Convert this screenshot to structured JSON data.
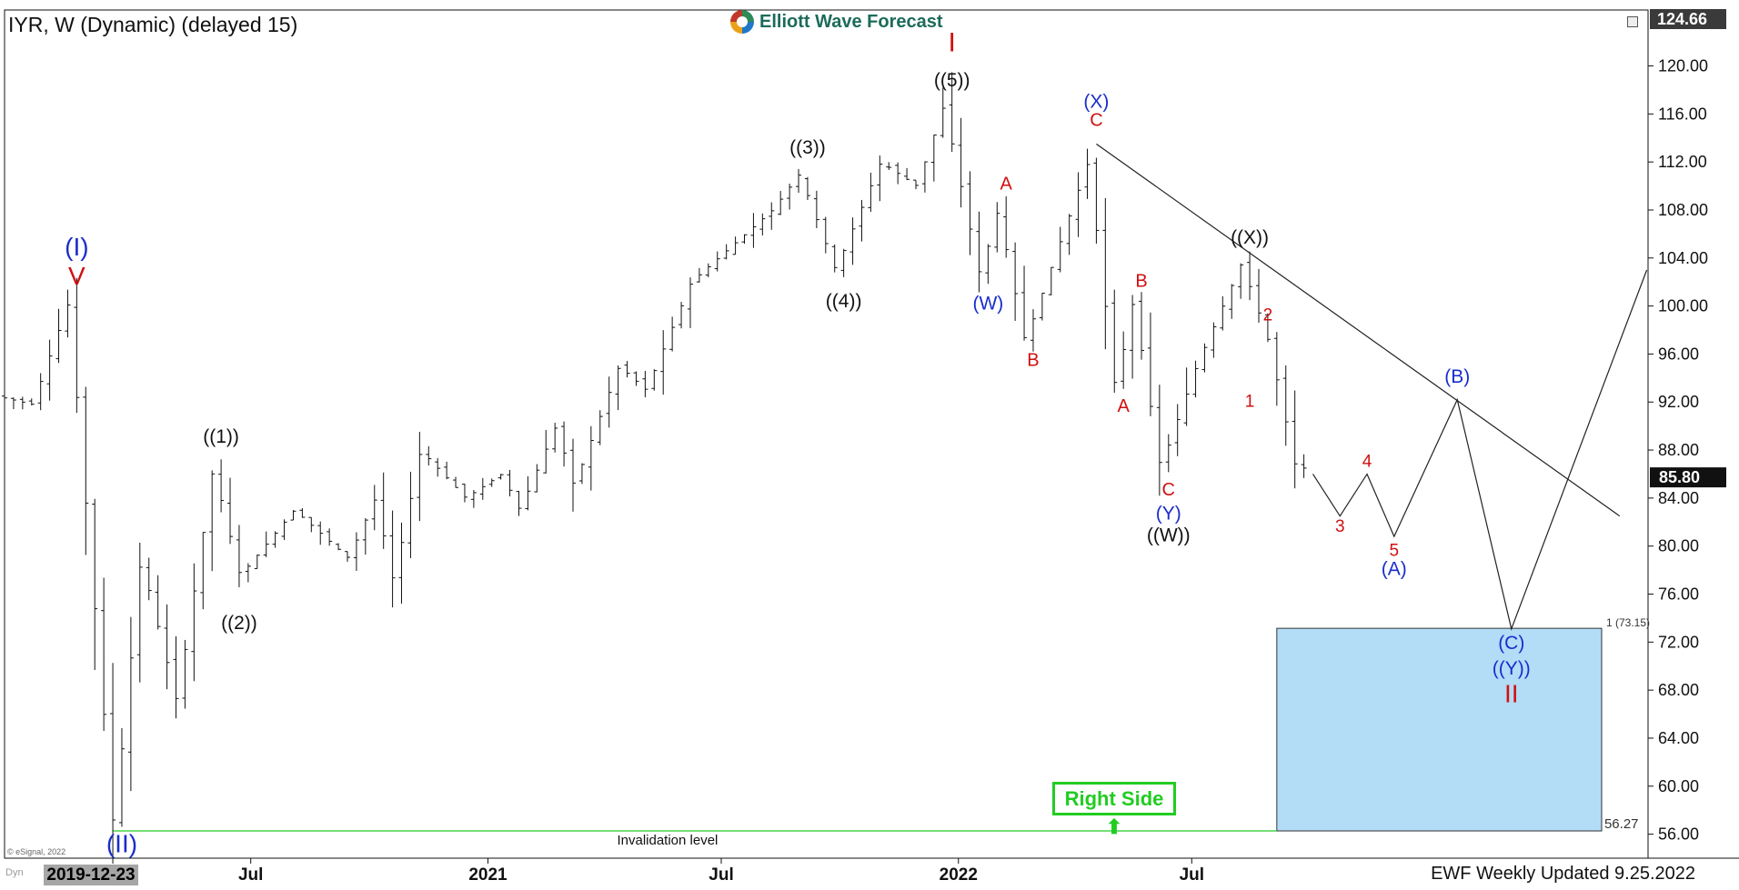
{
  "header": {
    "symbol_title": "IYR, W (Dynamic) (delayed 15)",
    "brand": "Elliott Wave Forecast"
  },
  "footer": {
    "updated": "EWF Weekly Updated 9.25.2022",
    "copyright": "© eSignal, 2022",
    "dyn": "Dyn",
    "start_date": "2019-12-23"
  },
  "badges": {
    "right_side": "Right Side ⬆"
  },
  "colors": {
    "target_box": "#b3dcf7",
    "invalidation_line": "#22cc22",
    "red_label": "#d01010",
    "blue_label": "#1a2dcc",
    "black_label": "#111111"
  },
  "chart_data": {
    "type": "ohlc",
    "yaxis": {
      "ticks": [
        56,
        60,
        64,
        68,
        72,
        76,
        80,
        84,
        88,
        92,
        96,
        100,
        104,
        108,
        112,
        116,
        120
      ],
      "tick_labels": [
        "56.00",
        "60.00",
        "64.00",
        "68.00",
        "72.00",
        "76.00",
        "80.00",
        "84.00",
        "88.00",
        "92.00",
        "96.00",
        "100.00",
        "104.00",
        "108.00",
        "112.00",
        "116.00",
        "120.00"
      ],
      "top_label": "124.66",
      "last_price_label": "85.80",
      "last_price": 85.8,
      "ylim": [
        54,
        124.66
      ]
    },
    "xaxis": {
      "labels": [
        {
          "text": "Jul",
          "date": "2020-07-01"
        },
        {
          "text": "2021",
          "date": "2021-01-01"
        },
        {
          "text": "Jul",
          "date": "2021-07-01"
        },
        {
          "text": "2022",
          "date": "2022-01-01"
        },
        {
          "text": "Jul",
          "date": "2022-07-01"
        }
      ],
      "xlim": [
        "2019-12-23",
        "2023-06-20"
      ]
    },
    "price_path": [
      [
        "2019-12-23",
        92.5
      ],
      [
        "2020-01-20",
        91.8
      ],
      [
        "2020-02-17",
        100.3
      ],
      [
        "2020-03-23",
        56.3
      ],
      [
        "2020-04-13",
        79
      ],
      [
        "2020-05-11",
        67
      ],
      [
        "2020-06-08",
        86.5
      ],
      [
        "2020-06-29",
        77.5
      ],
      [
        "2020-08-10",
        83
      ],
      [
        "2020-09-21",
        79
      ],
      [
        "2020-10-12",
        84
      ],
      [
        "2020-10-26",
        77
      ],
      [
        "2020-11-16",
        88
      ],
      [
        "2020-12-21",
        84
      ],
      [
        "2021-01-18",
        86
      ],
      [
        "2021-02-01",
        83
      ],
      [
        "2021-03-01",
        90
      ],
      [
        "2021-03-15",
        85
      ],
      [
        "2021-04-19",
        95
      ],
      [
        "2021-05-10",
        93
      ],
      [
        "2021-06-14",
        102
      ],
      [
        "2021-07-05",
        104
      ],
      [
        "2021-08-16",
        108
      ],
      [
        "2021-09-06",
        111
      ],
      [
        "2021-10-04",
        103
      ],
      [
        "2021-11-08",
        112
      ],
      [
        "2021-12-06",
        110
      ],
      [
        "2021-12-27",
        116.7
      ],
      [
        "2022-01-24",
        102.5
      ],
      [
        "2022-02-07",
        108
      ],
      [
        "2022-02-28",
        97
      ],
      [
        "2022-04-18",
        112
      ],
      [
        "2022-05-09",
        93
      ],
      [
        "2022-05-23",
        100.5
      ],
      [
        "2022-06-13",
        86.5
      ],
      [
        "2022-07-11",
        95
      ],
      [
        "2022-08-15",
        103.6
      ],
      [
        "2022-09-05",
        97
      ],
      [
        "2022-09-26",
        86.5
      ]
    ],
    "bar_params": {
      "start": "2019-12-23",
      "weeks": 145,
      "seed": 7,
      "noise": 0.018
    },
    "projection": [
      [
        "2022-10-03",
        86.0
      ],
      [
        "2022-10-24",
        82.5
      ],
      [
        "2022-11-14",
        86.0
      ],
      [
        "2022-12-05",
        80.8
      ],
      [
        "2023-01-23",
        92.2
      ],
      [
        "2023-03-06",
        73.1
      ],
      [
        "2023-06-19",
        103
      ]
    ],
    "trendline": [
      [
        "2022-04-18",
        113.5
      ],
      [
        "2023-05-29",
        82.5
      ]
    ],
    "target_box": {
      "x1": "2022-09-05",
      "x2": "2023-05-15",
      "top": 73.15,
      "bottom": 56.27,
      "top_label": "1 (73.15)",
      "bottom_label": "56.27"
    },
    "invalidation": {
      "level": 56.27,
      "x1": "2020-03-16",
      "x2": "2022-09-05",
      "label": "Invalidation level"
    },
    "wave_labels": [
      {
        "text": "(I)",
        "date": "2020-02-17",
        "price": 104.2,
        "color": "blue",
        "size": 28
      },
      {
        "text": "V",
        "date": "2020-02-17",
        "price": 101.8,
        "color": "red",
        "size": 28
      },
      {
        "text": "(II)",
        "date": "2020-03-23",
        "price": 54.5,
        "color": "blue",
        "size": 28
      },
      {
        "text": "((1))",
        "date": "2020-06-08",
        "price": 88.6,
        "color": "black",
        "size": 21
      },
      {
        "text": "((2))",
        "date": "2020-06-22",
        "price": 73.1,
        "color": "black",
        "size": 21
      },
      {
        "text": "((3))",
        "date": "2021-09-06",
        "price": 112.7,
        "color": "black",
        "size": 21
      },
      {
        "text": "((4))",
        "date": "2021-10-04",
        "price": 99.9,
        "color": "black",
        "size": 21
      },
      {
        "text": "I",
        "date": "2021-12-27",
        "price": 121.2,
        "color": "red",
        "size": 30
      },
      {
        "text": "((5))",
        "date": "2021-12-27",
        "price": 118.3,
        "color": "black",
        "size": 21
      },
      {
        "text": "A",
        "date": "2022-02-07",
        "price": 109.7,
        "color": "red",
        "size": 20
      },
      {
        "text": "(W)",
        "date": "2022-01-24",
        "price": 99.7,
        "color": "blue",
        "size": 21
      },
      {
        "text": "B",
        "date": "2022-02-28",
        "price": 95.0,
        "color": "red",
        "size": 20
      },
      {
        "text": "(X)",
        "date": "2022-04-18",
        "price": 116.5,
        "color": "blue",
        "size": 21
      },
      {
        "text": "C",
        "date": "2022-04-18",
        "price": 115.0,
        "color": "red",
        "size": 20
      },
      {
        "text": "B",
        "date": "2022-05-23",
        "price": 101.6,
        "color": "red",
        "size": 20
      },
      {
        "text": "A",
        "date": "2022-05-09",
        "price": 91.2,
        "color": "red",
        "size": 20
      },
      {
        "text": "C",
        "date": "2022-06-13",
        "price": 84.2,
        "color": "red",
        "size": 20
      },
      {
        "text": "(Y)",
        "date": "2022-06-13",
        "price": 82.2,
        "color": "blue",
        "size": 21
      },
      {
        "text": "((W))",
        "date": "2022-06-13",
        "price": 80.4,
        "color": "black",
        "size": 21
      },
      {
        "text": "((X))",
        "date": "2022-08-15",
        "price": 105.2,
        "color": "black",
        "size": 21
      },
      {
        "text": "2",
        "date": "2022-08-29",
        "price": 98.8,
        "color": "red",
        "size": 19
      },
      {
        "text": "1",
        "date": "2022-08-15",
        "price": 91.6,
        "color": "red",
        "size": 19
      },
      {
        "text": "4",
        "date": "2022-11-14",
        "price": 86.6,
        "color": "red",
        "size": 19
      },
      {
        "text": "3",
        "date": "2022-10-24",
        "price": 81.2,
        "color": "red",
        "size": 19
      },
      {
        "text": "5",
        "date": "2022-12-05",
        "price": 79.2,
        "color": "red",
        "size": 19
      },
      {
        "text": "(A)",
        "date": "2022-12-05",
        "price": 77.6,
        "color": "blue",
        "size": 21
      },
      {
        "text": "(B)",
        "date": "2023-01-23",
        "price": 93.6,
        "color": "blue",
        "size": 21
      },
      {
        "text": "(C)",
        "date": "2023-03-06",
        "price": 71.4,
        "color": "blue",
        "size": 21
      },
      {
        "text": "((Y))",
        "date": "2023-03-06",
        "price": 69.3,
        "color": "blue",
        "size": 21
      },
      {
        "text": "II",
        "date": "2023-03-06",
        "price": 67.0,
        "color": "red",
        "size": 28
      }
    ]
  }
}
